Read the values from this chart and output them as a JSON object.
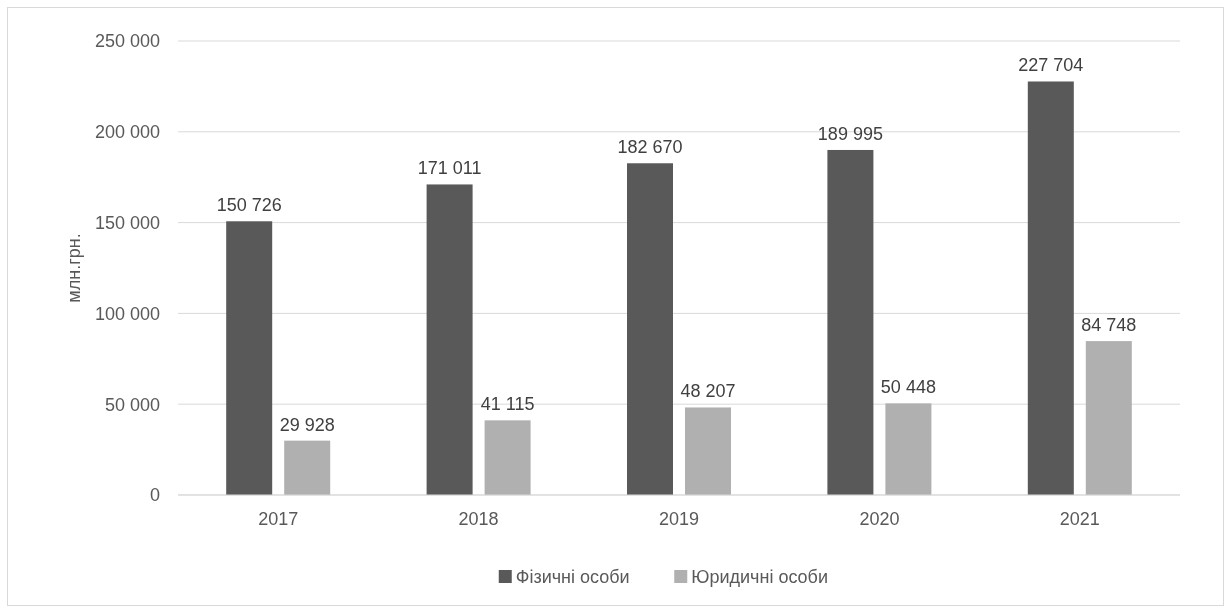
{
  "chart_data": {
    "type": "bar",
    "ylabel": "млн.грн.",
    "categories": [
      "2017",
      "2018",
      "2019",
      "2020",
      "2021"
    ],
    "series": [
      {
        "name": "Фізичні особи",
        "color": "#595959",
        "values": [
          150726,
          171011,
          182670,
          189995,
          227704
        ],
        "value_labels": [
          "150 726",
          "171 011",
          "182 670",
          "189 995",
          "227 704"
        ]
      },
      {
        "name": "Юридичні особи",
        "color": "#b0b0b0",
        "values": [
          29928,
          41115,
          48207,
          50448,
          84748
        ],
        "value_labels": [
          "29 928",
          "41 115",
          "48 207",
          "50 448",
          "84 748"
        ]
      }
    ],
    "ylim": [
      0,
      250000
    ],
    "yticks": [
      {
        "value": 0,
        "label": "0"
      },
      {
        "value": 50000,
        "label": "50 000"
      },
      {
        "value": 100000,
        "label": "100 000"
      },
      {
        "value": 150000,
        "label": "150 000"
      },
      {
        "value": 200000,
        "label": "200 000"
      },
      {
        "value": 250000,
        "label": "250 000"
      }
    ],
    "grid": "y",
    "legend": "bottom"
  }
}
